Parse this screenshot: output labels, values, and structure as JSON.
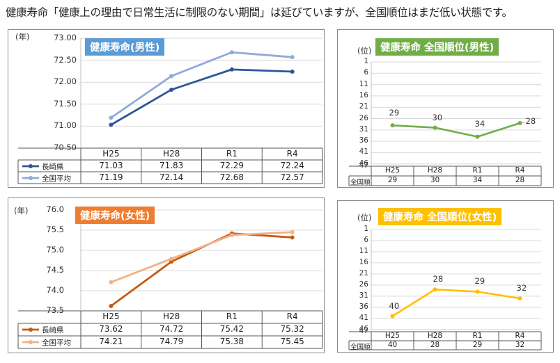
{
  "headline": "健康寿命「健康上の理由で日常生活に制限のない期間」は延びていますが、全国順位はまだ低い状態です。",
  "chart_data": [
    {
      "id": "male_life",
      "type": "line",
      "title": "健康寿命(男性)",
      "title_color": "#5b9bd5",
      "unit": "(年)",
      "categories": [
        "H25",
        "H28",
        "R1",
        "R4"
      ],
      "ylim": [
        70.5,
        73.0
      ],
      "yticks": [
        "73.00",
        "72.50",
        "72.00",
        "71.50",
        "71.00",
        "70.50"
      ],
      "series": [
        {
          "name": "長崎県",
          "values": [
            71.03,
            71.83,
            72.29,
            72.24
          ],
          "color": "#2f5597",
          "display": [
            "71.03",
            "71.83",
            "72.29",
            "72.24"
          ]
        },
        {
          "name": "全国平均",
          "values": [
            71.19,
            72.14,
            72.68,
            72.57
          ],
          "color": "#8faadc",
          "display": [
            "71.19",
            "72.14",
            "72.68",
            "72.57"
          ]
        }
      ]
    },
    {
      "id": "female_life",
      "type": "line",
      "title": "健康寿命(女性)",
      "title_color": "#ed7d31",
      "unit": "(年)",
      "categories": [
        "H25",
        "H28",
        "R1",
        "R4"
      ],
      "ylim": [
        73.5,
        76.0
      ],
      "yticks": [
        "76.0",
        "75.5",
        "75.0",
        "74.5",
        "74.0",
        "73.5"
      ],
      "series": [
        {
          "name": "長崎県",
          "values": [
            73.62,
            74.72,
            75.42,
            75.32
          ],
          "color": "#c55a11",
          "display": [
            "73.62",
            "74.72",
            "75.42",
            "75.32"
          ]
        },
        {
          "name": "全国平均",
          "values": [
            74.21,
            74.79,
            75.38,
            75.45
          ],
          "color": "#f4b183",
          "display": [
            "74.21",
            "74.79",
            "75.38",
            "75.45"
          ]
        }
      ]
    },
    {
      "id": "male_rank",
      "type": "line",
      "title": "健康寿命  全国順位(男性)",
      "title_color": "#70ad47",
      "unit": "(位)",
      "categories": [
        "H25",
        "H28",
        "R1",
        "R4"
      ],
      "ylim": [
        1,
        47
      ],
      "inverted": true,
      "yticks": [
        "1",
        "6",
        "11",
        "16",
        "21",
        "26",
        "31",
        "36",
        "41",
        "46",
        "47"
      ],
      "series": [
        {
          "name": "全国順",
          "values": [
            29,
            30,
            34,
            28
          ],
          "color": "#70ad47",
          "display": [
            "29",
            "30",
            "34",
            "28"
          ]
        }
      ]
    },
    {
      "id": "female_rank",
      "type": "line",
      "title": "健康寿命  全国順位(女性)",
      "title_color": "#ffc000",
      "unit": "(位)",
      "categories": [
        "H25",
        "H28",
        "R1",
        "R4"
      ],
      "ylim": [
        1,
        47
      ],
      "inverted": true,
      "yticks": [
        "1",
        "6",
        "11",
        "16",
        "21",
        "26",
        "31",
        "36",
        "41",
        "46",
        "47"
      ],
      "series": [
        {
          "name": "全国順",
          "values": [
            40,
            28,
            29,
            32
          ],
          "color": "#ffc000",
          "display": [
            "40",
            "28",
            "29",
            "32"
          ]
        }
      ]
    }
  ]
}
